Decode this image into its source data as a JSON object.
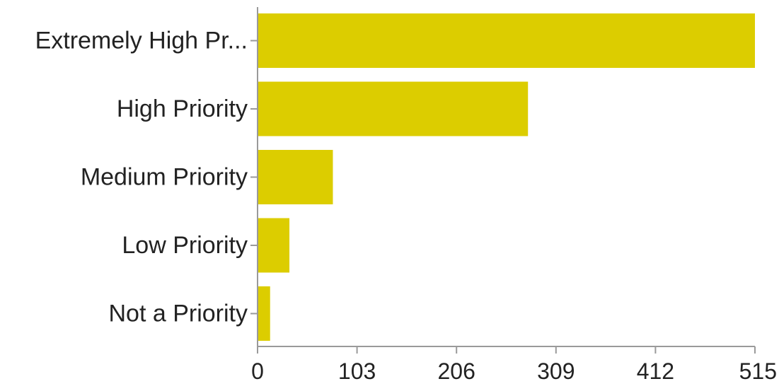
{
  "chart_data": {
    "type": "bar",
    "orientation": "horizontal",
    "categories": [
      "Extremely High Pr...",
      "High Priority",
      "Medium Priority",
      "Low Priority",
      "Not a Priority"
    ],
    "values": [
      515,
      280,
      78,
      33,
      13
    ],
    "xlim": [
      0,
      515
    ],
    "xticks": [
      0,
      103,
      206,
      309,
      412,
      515
    ],
    "grid": false,
    "legend": "none",
    "bar_color": "#dccd00"
  }
}
